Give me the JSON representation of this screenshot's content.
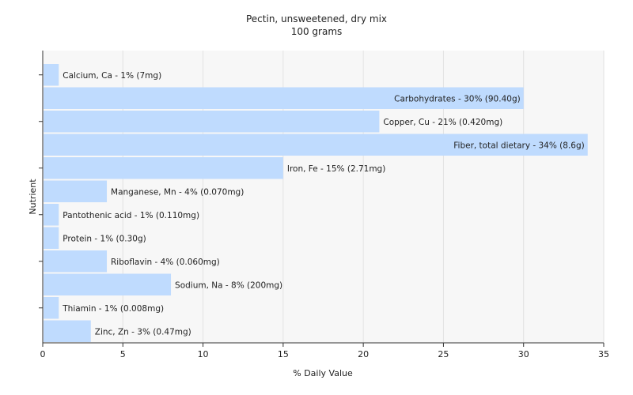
{
  "chart_data": {
    "type": "bar",
    "orientation": "horizontal",
    "title": "Pectin, unsweetened, dry mix",
    "subtitle": "100 grams",
    "xlabel": "% Daily Value",
    "ylabel": "Nutrient",
    "xlim": [
      0,
      35
    ],
    "xticks": [
      0,
      5,
      10,
      15,
      20,
      25,
      30,
      35
    ],
    "grid": true,
    "bar_color": "#bfdbfe",
    "categories": [
      "Calcium, Ca",
      "Carbohydrates",
      "Copper, Cu",
      "Fiber, total dietary",
      "Iron, Fe",
      "Manganese, Mn",
      "Pantothenic acid",
      "Protein",
      "Riboflavin",
      "Sodium, Na",
      "Thiamin",
      "Zinc, Zn"
    ],
    "values": [
      1,
      30,
      21,
      34,
      15,
      4,
      1,
      1,
      4,
      8,
      1,
      3
    ],
    "data_labels": [
      "Calcium, Ca - 1% (7mg)",
      "Carbohydrates - 30% (90.40g)",
      "Copper, Cu - 21% (0.420mg)",
      "Fiber, total dietary - 34% (8.6g)",
      "Iron, Fe - 15% (2.71mg)",
      "Manganese, Mn - 4% (0.070mg)",
      "Pantothenic acid - 1% (0.110mg)",
      "Protein - 1% (0.30g)",
      "Riboflavin - 4% (0.060mg)",
      "Sodium, Na - 8% (200mg)",
      "Thiamin - 1% (0.008mg)",
      "Zinc, Zn - 3% (0.47mg)"
    ]
  }
}
